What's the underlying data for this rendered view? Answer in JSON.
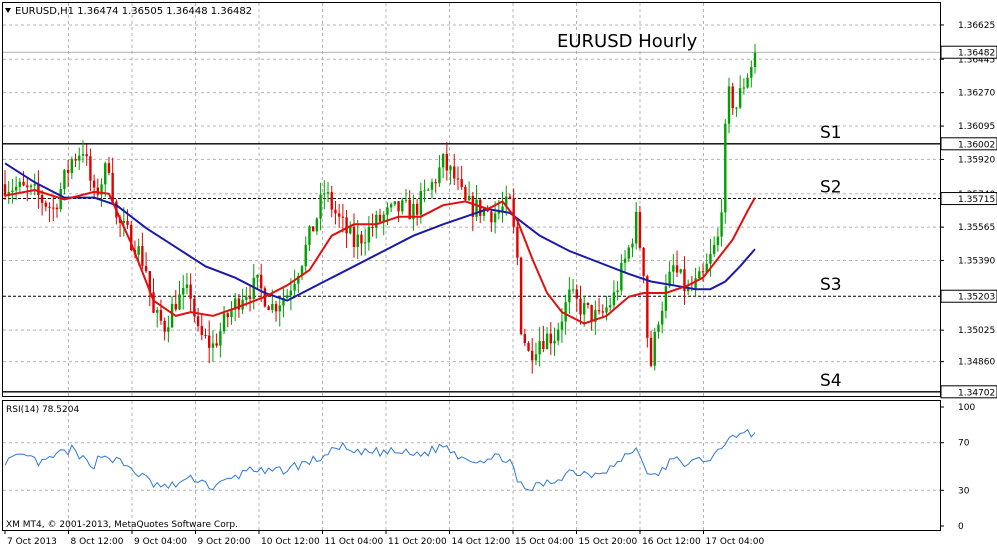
{
  "header": {
    "symbol_line": "EURUSD,H1  1.36474 1.36505 1.36448 1.36482"
  },
  "chart_data": {
    "type": "candlestick",
    "title": "EURUSD Hourly",
    "ylim": [
      1.3468,
      1.3674
    ],
    "price_ticks": [
      "1.36625",
      "1.36445",
      "1.36270",
      "1.36095",
      "1.35920",
      "1.35740",
      "1.35565",
      "1.35390",
      "1.35025",
      "1.34860"
    ],
    "last_price": "1.36482",
    "levels": [
      {
        "label": "S1",
        "price": "1.36002",
        "value": 1.36002,
        "style": "solid"
      },
      {
        "label": "S2",
        "price": "1.35715",
        "value": 1.35715,
        "style": "dashed"
      },
      {
        "label": "S3",
        "price": "1.35203",
        "value": 1.35203,
        "style": "dashed"
      },
      {
        "label": "S4",
        "price": "1.34702",
        "value": 1.34702,
        "style": "solid"
      }
    ],
    "x_labels": [
      "7 Oct 2013",
      "8 Oct 12:00",
      "9 Oct 04:00",
      "9 Oct 20:00",
      "10 Oct 12:00",
      "11 Oct 04:00",
      "11 Oct 20:00",
      "14 Oct 12:00",
      "15 Oct 04:00",
      "15 Oct 20:00",
      "16 Oct 12:00",
      "17 Oct 04:00"
    ],
    "close_path": [
      [
        0,
        1.3579
      ],
      [
        8,
        1.3574
      ],
      [
        13,
        1.3566
      ],
      [
        18,
        1.3592
      ],
      [
        21,
        1.3598
      ],
      [
        24,
        1.3572
      ],
      [
        28,
        1.359
      ],
      [
        30,
        1.356
      ],
      [
        35,
        1.3548
      ],
      [
        38,
        1.3535
      ],
      [
        40,
        1.351
      ],
      [
        43,
        1.3505
      ],
      [
        46,
        1.3518
      ],
      [
        50,
        1.3522
      ],
      [
        52,
        1.35
      ],
      [
        56,
        1.3494
      ],
      [
        60,
        1.351
      ],
      [
        64,
        1.3522
      ],
      [
        68,
        1.3526
      ],
      [
        72,
        1.3515
      ],
      [
        76,
        1.3522
      ],
      [
        80,
        1.354
      ],
      [
        84,
        1.3562
      ],
      [
        86,
        1.3575
      ],
      [
        90,
        1.356
      ],
      [
        94,
        1.3548
      ],
      [
        98,
        1.3555
      ],
      [
        102,
        1.3562
      ],
      [
        106,
        1.3566
      ],
      [
        110,
        1.3565
      ],
      [
        114,
        1.3575
      ],
      [
        118,
        1.359
      ],
      [
        121,
        1.3582
      ],
      [
        124,
        1.3568
      ],
      [
        128,
        1.3566
      ],
      [
        132,
        1.3564
      ],
      [
        136,
        1.3568
      ],
      [
        138,
        1.354
      ],
      [
        139,
        1.3505
      ],
      [
        141,
        1.349
      ],
      [
        144,
        1.3498
      ],
      [
        148,
        1.35
      ],
      [
        152,
        1.352
      ],
      [
        156,
        1.3513
      ],
      [
        160,
        1.3508
      ],
      [
        164,
        1.352
      ],
      [
        168,
        1.3545
      ],
      [
        170,
        1.356
      ],
      [
        172,
        1.3535
      ],
      [
        173,
        1.35
      ],
      [
        174,
        1.3485
      ],
      [
        176,
        1.351
      ],
      [
        180,
        1.3535
      ],
      [
        184,
        1.3522
      ],
      [
        188,
        1.353
      ],
      [
        190,
        1.354
      ],
      [
        192,
        1.355
      ],
      [
        193,
        1.357
      ],
      [
        194,
        1.3605
      ],
      [
        195,
        1.3625
      ],
      [
        197,
        1.362
      ],
      [
        199,
        1.3632
      ],
      [
        201,
        1.3642
      ],
      [
        202,
        1.3648
      ]
    ],
    "ma_fast": [
      [
        0,
        1.3573
      ],
      [
        8,
        1.3576
      ],
      [
        16,
        1.3571
      ],
      [
        24,
        1.3575
      ],
      [
        28,
        1.3574
      ],
      [
        34,
        1.3548
      ],
      [
        40,
        1.3518
      ],
      [
        46,
        1.351
      ],
      [
        50,
        1.3512
      ],
      [
        56,
        1.351
      ],
      [
        62,
        1.3514
      ],
      [
        70,
        1.352
      ],
      [
        76,
        1.3526
      ],
      [
        82,
        1.3534
      ],
      [
        88,
        1.3552
      ],
      [
        94,
        1.3558
      ],
      [
        100,
        1.3558
      ],
      [
        106,
        1.3562
      ],
      [
        112,
        1.3562
      ],
      [
        118,
        1.3568
      ],
      [
        124,
        1.357
      ],
      [
        130,
        1.3566
      ],
      [
        134,
        1.357
      ],
      [
        138,
        1.356
      ],
      [
        142,
        1.354
      ],
      [
        146,
        1.3522
      ],
      [
        150,
        1.3512
      ],
      [
        156,
        1.3506
      ],
      [
        162,
        1.351
      ],
      [
        168,
        1.352
      ],
      [
        172,
        1.3522
      ],
      [
        178,
        1.3522
      ],
      [
        184,
        1.3526
      ],
      [
        188,
        1.353
      ],
      [
        192,
        1.354
      ],
      [
        196,
        1.355
      ],
      [
        200,
        1.3565
      ],
      [
        202,
        1.3572
      ]
    ],
    "ma_slow": [
      [
        0,
        1.359
      ],
      [
        8,
        1.358
      ],
      [
        16,
        1.3572
      ],
      [
        24,
        1.3572
      ],
      [
        30,
        1.3568
      ],
      [
        38,
        1.3556
      ],
      [
        46,
        1.3546
      ],
      [
        54,
        1.3536
      ],
      [
        62,
        1.353
      ],
      [
        70,
        1.3522
      ],
      [
        76,
        1.3518
      ],
      [
        80,
        1.3522
      ],
      [
        86,
        1.3528
      ],
      [
        94,
        1.3536
      ],
      [
        102,
        1.3544
      ],
      [
        110,
        1.3552
      ],
      [
        118,
        1.3558
      ],
      [
        124,
        1.3562
      ],
      [
        130,
        1.3566
      ],
      [
        136,
        1.3564
      ],
      [
        144,
        1.3552
      ],
      [
        152,
        1.3544
      ],
      [
        160,
        1.3538
      ],
      [
        168,
        1.3532
      ],
      [
        174,
        1.3528
      ],
      [
        180,
        1.3526
      ],
      [
        186,
        1.3524
      ],
      [
        190,
        1.3524
      ],
      [
        194,
        1.3528
      ],
      [
        198,
        1.3536
      ],
      [
        202,
        1.3545
      ]
    ],
    "rsi": {
      "label": "RSI(14) 78.5204",
      "ylim": [
        0,
        100
      ],
      "ticks": [
        "100",
        "70",
        "30",
        "0"
      ],
      "values": [
        [
          0,
          55
        ],
        [
          6,
          58
        ],
        [
          10,
          52
        ],
        [
          14,
          60
        ],
        [
          18,
          64
        ],
        [
          20,
          57
        ],
        [
          24,
          52
        ],
        [
          26,
          60
        ],
        [
          30,
          55
        ],
        [
          34,
          48
        ],
        [
          40,
          35
        ],
        [
          44,
          32
        ],
        [
          48,
          38
        ],
        [
          52,
          40
        ],
        [
          56,
          32
        ],
        [
          60,
          38
        ],
        [
          64,
          44
        ],
        [
          66,
          50
        ],
        [
          70,
          44
        ],
        [
          76,
          48
        ],
        [
          80,
          52
        ],
        [
          84,
          56
        ],
        [
          88,
          62
        ],
        [
          90,
          68
        ],
        [
          94,
          60
        ],
        [
          98,
          62
        ],
        [
          102,
          62
        ],
        [
          106,
          62
        ],
        [
          110,
          60
        ],
        [
          114,
          62
        ],
        [
          118,
          68
        ],
        [
          122,
          60
        ],
        [
          126,
          56
        ],
        [
          130,
          56
        ],
        [
          134,
          58
        ],
        [
          136,
          56
        ],
        [
          138,
          36
        ],
        [
          140,
          30
        ],
        [
          144,
          34
        ],
        [
          148,
          38
        ],
        [
          152,
          46
        ],
        [
          158,
          44
        ],
        [
          162,
          48
        ],
        [
          166,
          54
        ],
        [
          168,
          62
        ],
        [
          170,
          64
        ],
        [
          172,
          54
        ],
        [
          174,
          40
        ],
        [
          176,
          44
        ],
        [
          180,
          56
        ],
        [
          184,
          52
        ],
        [
          188,
          56
        ],
        [
          190,
          58
        ],
        [
          194,
          66
        ],
        [
          195,
          78
        ],
        [
          198,
          76
        ],
        [
          202,
          78.5
        ]
      ]
    }
  },
  "footer": {
    "copyright": "XM MT4, © 2001-2013, MetaQuotes Software Corp."
  },
  "colors": {
    "bull": "#00a000",
    "bear": "#e00000",
    "ma_fast": "#e01010",
    "ma_slow": "#1a1aa8",
    "rsi": "#2f78d6"
  }
}
